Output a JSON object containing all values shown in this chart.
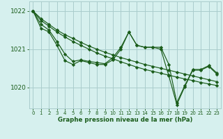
{
  "bg_color": "#d6f0ee",
  "grid_color": "#aacccc",
  "line_color": "#1a5c1a",
  "marker_color": "#1a5c1a",
  "title": "Graphe pression niveau de la mer (hPa)",
  "title_color": "#1a5c1a",
  "ylim": [
    1019.45,
    1022.25
  ],
  "xlim": [
    -0.5,
    23.5
  ],
  "yticks": [
    1020,
    1021,
    1022
  ],
  "xticks": [
    0,
    1,
    2,
    3,
    4,
    5,
    6,
    7,
    8,
    9,
    10,
    11,
    12,
    13,
    14,
    15,
    16,
    17,
    18,
    19,
    20,
    21,
    22,
    23
  ],
  "series": [
    {
      "y": [
        1022.0,
        1021.8,
        1021.65,
        1021.5,
        1021.38,
        1021.28,
        1021.18,
        1021.08,
        1021.0,
        1020.92,
        1020.85,
        1020.78,
        1020.72,
        1020.66,
        1020.6,
        1020.55,
        1020.5,
        1020.45,
        1020.4,
        1020.35,
        1020.3,
        1020.25,
        1020.2,
        1020.15
      ]
    },
    {
      "y": [
        1022.0,
        1021.75,
        1021.6,
        1021.45,
        1021.32,
        1021.2,
        1021.1,
        1021.0,
        1020.9,
        1020.82,
        1020.75,
        1020.67,
        1020.6,
        1020.53,
        1020.47,
        1020.42,
        1020.37,
        1020.32,
        1020.27,
        1020.22,
        1020.18,
        1020.13,
        1020.09,
        1020.05
      ]
    },
    {
      "y": [
        1022.0,
        1021.65,
        1021.5,
        1021.2,
        1020.87,
        1020.68,
        1020.72,
        1020.68,
        1020.65,
        1020.62,
        1020.78,
        1021.05,
        1021.45,
        1021.1,
        1021.05,
        1021.05,
        1021.05,
        1020.6,
        1019.6,
        1020.05,
        1020.47,
        1020.47,
        1020.57,
        1020.38
      ]
    },
    {
      "y": [
        1022.0,
        1021.55,
        1021.45,
        1021.1,
        1020.7,
        1020.6,
        1020.7,
        1020.65,
        1020.6,
        1020.6,
        1020.72,
        1021.0,
        1021.45,
        1021.1,
        1021.05,
        1021.05,
        1021.0,
        1020.3,
        1019.55,
        1020.02,
        1020.45,
        1020.45,
        1020.55,
        1020.35
      ]
    }
  ]
}
